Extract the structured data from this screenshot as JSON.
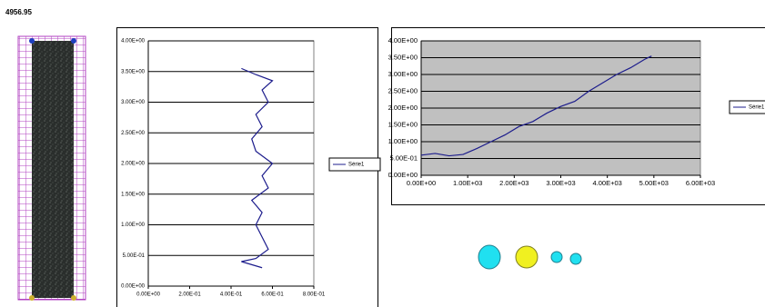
{
  "header": {
    "value": "4956.95"
  },
  "chart_data": [
    {
      "type": "line",
      "x": [
        0.55,
        0.45,
        0.52,
        0.58,
        0.55,
        0.52,
        0.55,
        0.5,
        0.58,
        0.55,
        0.6,
        0.52,
        0.5,
        0.55,
        0.52,
        0.58,
        0.55,
        0.6,
        0.52,
        0.45
      ],
      "series": [
        {
          "name": "Série1",
          "color": "#1c1c8c",
          "values": [
            0.3,
            0.4,
            0.45,
            0.6,
            0.8,
            1.0,
            1.2,
            1.4,
            1.6,
            1.8,
            2.0,
            2.2,
            2.4,
            2.6,
            2.8,
            3.0,
            3.2,
            3.35,
            3.45,
            3.55
          ]
        }
      ],
      "xlim": [
        0,
        0.8
      ],
      "xticks": [
        {
          "value": 0,
          "label": "0.00E+00"
        },
        {
          "value": 0.2,
          "label": "2.00E-01"
        },
        {
          "value": 0.4,
          "label": "4.00E-01"
        },
        {
          "value": 0.6,
          "label": "6.00E-01"
        },
        {
          "value": 0.8,
          "label": "8.00E-01"
        }
      ],
      "ylim": [
        0,
        4
      ],
      "yticks": [
        {
          "value": 0,
          "label": "0.00E+00"
        },
        {
          "value": 0.5,
          "label": "5.00E-01"
        },
        {
          "value": 1,
          "label": "1.00E+00"
        },
        {
          "value": 1.5,
          "label": "1.50E+00"
        },
        {
          "value": 2,
          "label": "2.00E+00"
        },
        {
          "value": 2.5,
          "label": "2.50E+00"
        },
        {
          "value": 3,
          "label": "3.00E+00"
        },
        {
          "value": 3.5,
          "label": "3.50E+00"
        },
        {
          "value": 4,
          "label": "4.00E+00"
        }
      ],
      "grid": true,
      "plot_background": "#ffffff",
      "legend": "right"
    },
    {
      "type": "line",
      "x": [
        0,
        300,
        600,
        900,
        1200,
        1500,
        1800,
        2100,
        2400,
        2700,
        3000,
        3300,
        3600,
        3900,
        4200,
        4500,
        4800,
        4950
      ],
      "series": [
        {
          "name": "Série1",
          "color": "#1c1c8c",
          "values": [
            0.6,
            0.65,
            0.58,
            0.62,
            0.8,
            1.0,
            1.2,
            1.45,
            1.6,
            1.85,
            2.05,
            2.2,
            2.5,
            2.75,
            3.0,
            3.2,
            3.45,
            3.55
          ]
        }
      ],
      "xlim": [
        0,
        6000
      ],
      "xticks": [
        {
          "value": 0,
          "label": "0.00E+00"
        },
        {
          "value": 1000,
          "label": "1.00E+03"
        },
        {
          "value": 2000,
          "label": "2.00E+03"
        },
        {
          "value": 3000,
          "label": "3.00E+03"
        },
        {
          "value": 4000,
          "label": "4.00E+03"
        },
        {
          "value": 5000,
          "label": "5.00E+03"
        },
        {
          "value": 6000,
          "label": "6.00E+03"
        }
      ],
      "ylim": [
        0,
        4
      ],
      "yticks": [
        {
          "value": 0,
          "label": "0.00E+00"
        },
        {
          "value": 0.5,
          "label": "5.00E-01"
        },
        {
          "value": 1,
          "label": "1.00E+00"
        },
        {
          "value": 1.5,
          "label": "1.50E+00"
        },
        {
          "value": 2,
          "label": "2.00E+00"
        },
        {
          "value": 2.5,
          "label": "2.50E+00"
        },
        {
          "value": 3,
          "label": "3.00E+00"
        },
        {
          "value": 3.5,
          "label": "3.50E+00"
        },
        {
          "value": 4,
          "label": "4.00E+00"
        }
      ],
      "grid": true,
      "plot_background": "#c0c0c0",
      "legend": "right"
    }
  ]
}
